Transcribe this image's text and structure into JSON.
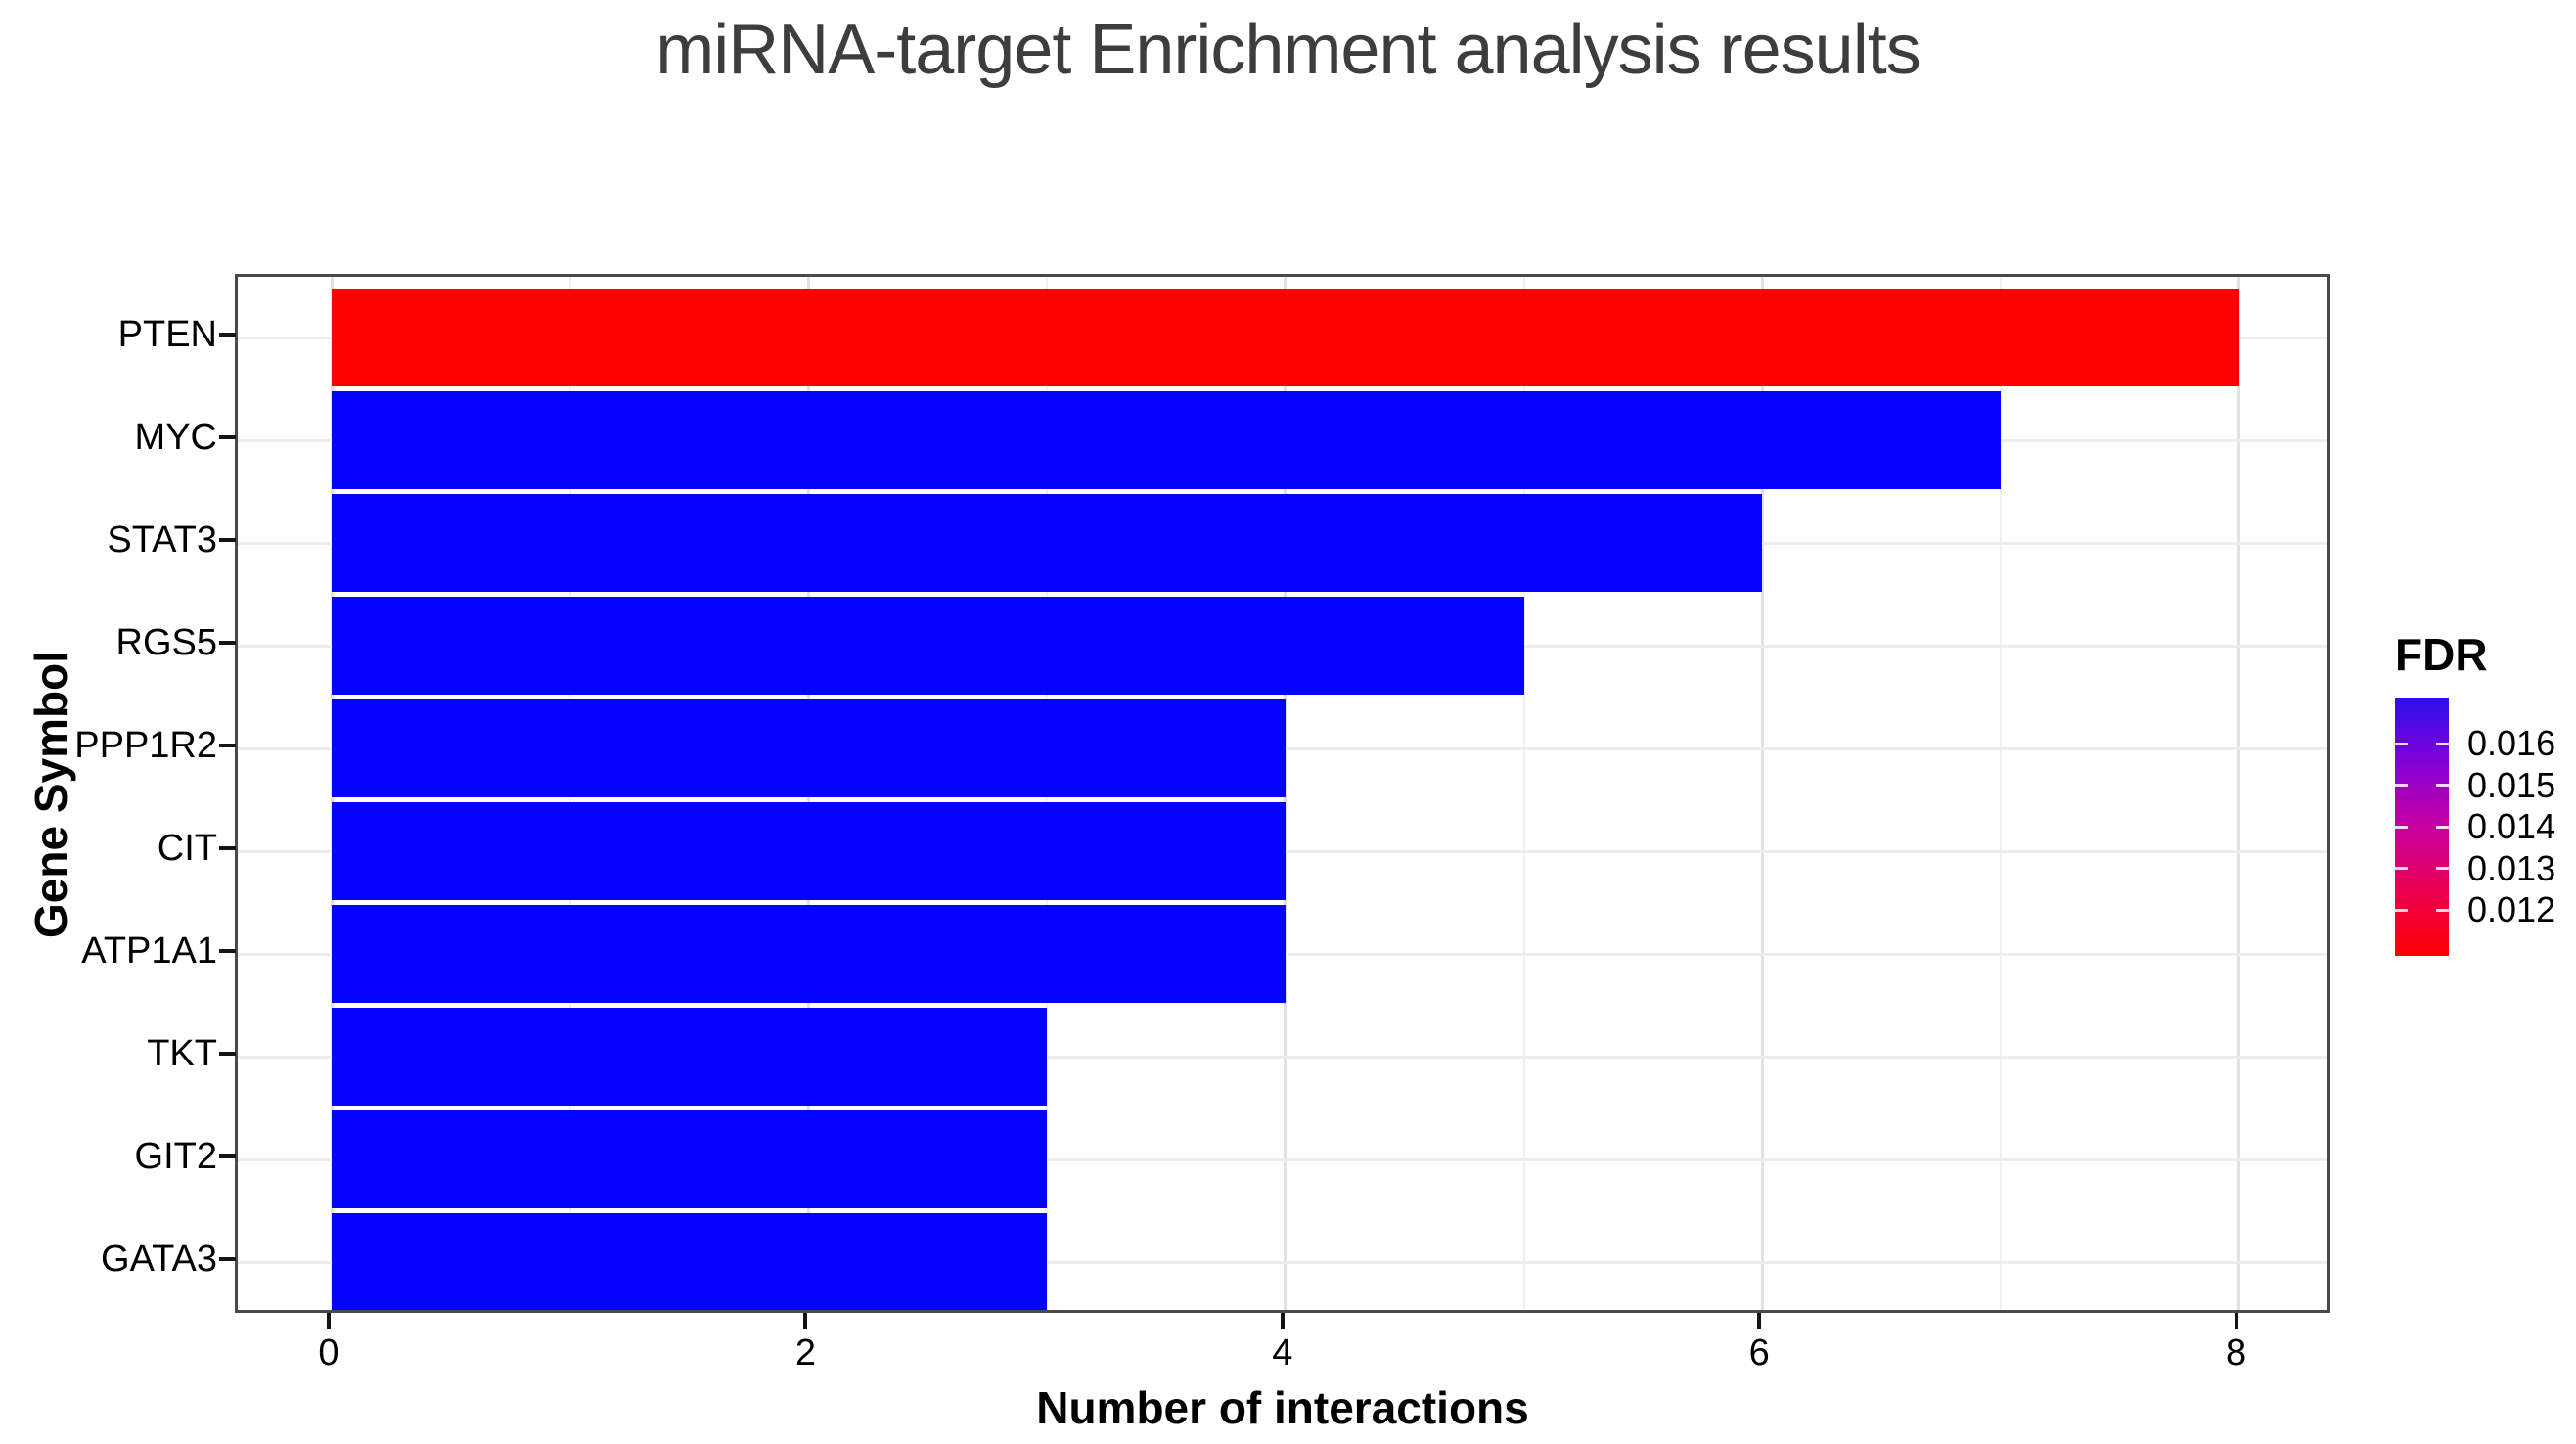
{
  "title": "miRNA-target Enrichment analysis results",
  "axes": {
    "x_title": "Number of interactions",
    "y_title": "Gene Symbol",
    "x_tick_labels": [
      "0",
      "2",
      "4",
      "6",
      "8"
    ]
  },
  "legend": {
    "title": "FDR",
    "tick_labels": [
      "0.016",
      "0.015",
      "0.014",
      "0.013",
      "0.012"
    ],
    "gradient_colors": [
      "#2a10e8",
      "#8400d8",
      "#c700a0",
      "#ea0050",
      "#fe0000"
    ]
  },
  "chart_data": {
    "type": "bar",
    "orientation": "horizontal",
    "title": "miRNA-target Enrichment analysis results",
    "xlabel": "Number of interactions",
    "ylabel": "Gene Symbol",
    "categories": [
      "PTEN",
      "MYC",
      "STAT3",
      "RGS5",
      "PPP1R2",
      "CIT",
      "ATP1A1",
      "TKT",
      "GIT2",
      "GATA3"
    ],
    "values": [
      8,
      7,
      6,
      5,
      4,
      4,
      4,
      3,
      3,
      3
    ],
    "bar_colors": [
      "#fd0000",
      "#0404fd",
      "#0404fd",
      "#0404fd",
      "#0404fd",
      "#0404fd",
      "#0404fd",
      "#0404fd",
      "#0404fd",
      "#0404fd"
    ],
    "xlim": [
      0,
      8.4
    ],
    "xticks": [
      0,
      2,
      4,
      6,
      8
    ],
    "minor_xticks": [
      1,
      3,
      5,
      7
    ],
    "grid": true,
    "legend_position": "right",
    "legend_title": "FDR",
    "legend_tick_values": [
      0.016,
      0.015,
      0.014,
      0.013,
      0.012
    ]
  },
  "colors": {
    "major_grid": "#e2e2e2",
    "minor_grid": "#f0f0f0",
    "row_grid": "#ededed",
    "panel_border": "#4a4a4a",
    "title_text": "#3d3d3d",
    "axis_text": "#000000"
  }
}
